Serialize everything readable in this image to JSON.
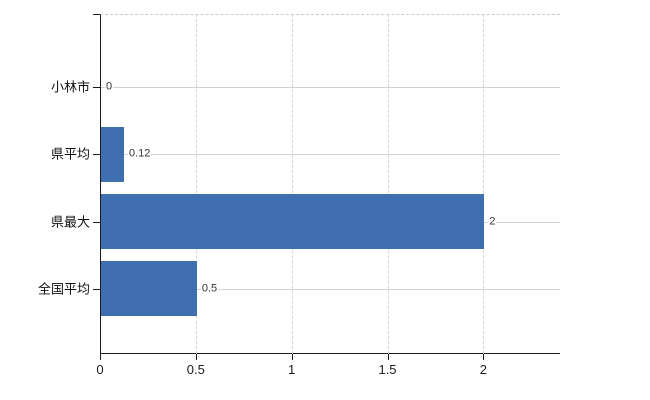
{
  "chart_data": {
    "type": "bar",
    "orientation": "horizontal",
    "categories": [
      "小林市",
      "県平均",
      "県最大",
      "全国平均"
    ],
    "values": [
      0,
      0.12,
      2,
      0.5
    ],
    "data_labels": [
      "0",
      "0.12",
      "2",
      "0.5"
    ],
    "xticks": [
      0,
      0.5,
      1,
      1.5,
      2
    ],
    "xtick_labels": [
      "0",
      "0.5",
      "1",
      "1.5",
      "2"
    ],
    "xlim": [
      0,
      2.4
    ],
    "grid": "on",
    "legend": "none",
    "bar_color": "#3f6eb1"
  },
  "colors": {
    "bar": "#3f6eb1",
    "axis": "#1a1a1a",
    "grid_horizontal": "#ccd5cc",
    "grid_vertical": "#d4d3d9",
    "plot_border_dashed": "#c9c9c9",
    "value_label_text": "#333333",
    "category_label_text": "#111111",
    "tick_label_text": "#1a1a1a",
    "background": "#ffffff"
  }
}
